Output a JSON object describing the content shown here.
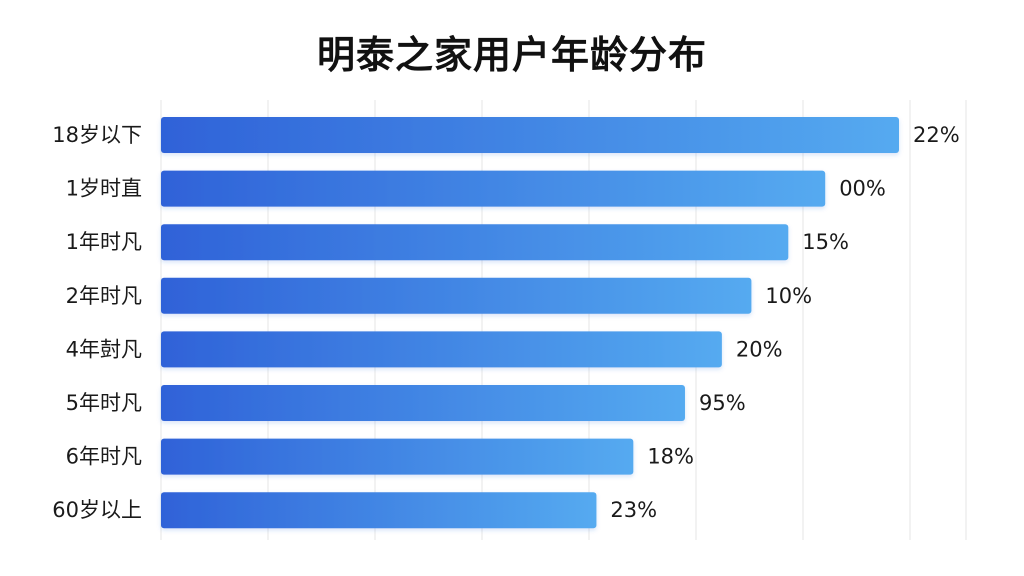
{
  "chart_data": {
    "type": "bar",
    "orientation": "horizontal",
    "title": "明泰之家用户年龄分布",
    "categories": [
      "18岁以下",
      "1岁时直",
      "1年时凡",
      "2年时凡",
      "4年尌凡",
      "5年时凡",
      "6年时凡",
      "60岁以上"
    ],
    "values": [
      100,
      90,
      85,
      80,
      76,
      71,
      64,
      59
    ],
    "value_labels": [
      "22%",
      "00%",
      "15%",
      "10%",
      "20%",
      "95%",
      "18%",
      "23%"
    ],
    "xlim": [
      0,
      100
    ],
    "grid": true,
    "legend": "none",
    "colors": {
      "bar_start": "#2f62d8",
      "bar_end": "#55aaf0",
      "grid": "#e6e6e6"
    }
  }
}
